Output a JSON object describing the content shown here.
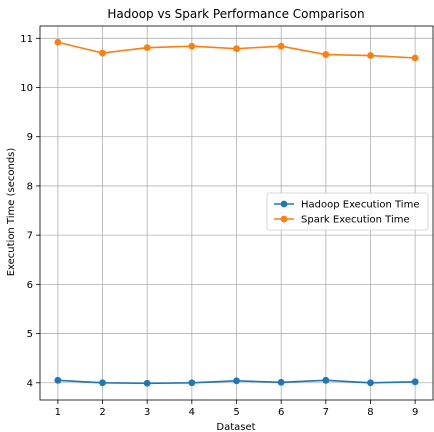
{
  "chart_data": {
    "type": "line",
    "title": "Hadoop vs Spark Performance Comparison",
    "xlabel": "Dataset",
    "ylabel": "Execution Time (seconds)",
    "x": [
      1,
      2,
      3,
      4,
      5,
      6,
      7,
      8,
      9
    ],
    "xticks": [
      "1",
      "2",
      "3",
      "4",
      "5",
      "6",
      "7",
      "8",
      "9"
    ],
    "yticks": [
      "4",
      "5",
      "6",
      "7",
      "8",
      "9",
      "10",
      "11"
    ],
    "xlim": [
      0.6,
      9.4
    ],
    "ylim": [
      3.65,
      11.25
    ],
    "grid": true,
    "legend_position": "center-right",
    "series": [
      {
        "name": "Hadoop Execution Time",
        "color": "#1f77b4",
        "values": [
          4.05,
          4.0,
          3.99,
          4.0,
          4.04,
          4.01,
          4.05,
          4.0,
          4.02
        ]
      },
      {
        "name": "Spark Execution Time",
        "color": "#ff7f0e",
        "values": [
          10.92,
          10.7,
          10.81,
          10.84,
          10.79,
          10.84,
          10.67,
          10.65,
          10.6
        ]
      }
    ]
  }
}
